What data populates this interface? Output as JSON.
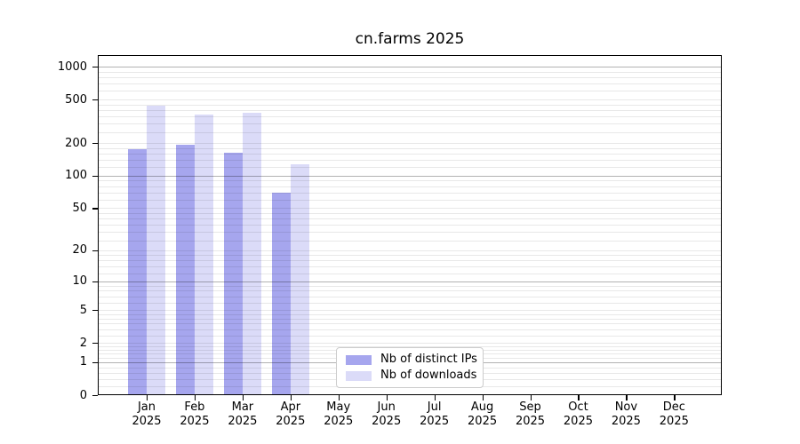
{
  "chart_data": {
    "type": "bar",
    "title": "cn.farms 2025",
    "categories": [
      "Jan",
      "Feb",
      "Mar",
      "Apr",
      "May",
      "Jun",
      "Jul",
      "Aug",
      "Sep",
      "Oct",
      "Nov",
      "Dec"
    ],
    "x_tick_year": "2025",
    "series": [
      {
        "name": "Nb of distinct IPs",
        "color": "#a6a6ee",
        "values": [
          176,
          192,
          163,
          69,
          0,
          0,
          0,
          0,
          0,
          0,
          0,
          0
        ]
      },
      {
        "name": "Nb of downloads",
        "color": "#dbdbf8",
        "values": [
          440,
          365,
          375,
          128,
          0,
          0,
          0,
          0,
          0,
          0,
          0,
          0
        ]
      }
    ],
    "y_axis": {
      "scale": "log10(value+1)",
      "tick_values": [
        0,
        1,
        2,
        5,
        10,
        20,
        50,
        100,
        200,
        500,
        1000
      ],
      "tick_labels": [
        "0",
        "1",
        "2",
        "5",
        "10",
        "20",
        "50",
        "100",
        "200",
        "500",
        "1000"
      ],
      "decade_values": [
        1,
        10,
        100,
        1000
      ],
      "minor_values": [
        0.2,
        0.4,
        0.6,
        0.8,
        1.2,
        1.4,
        1.6,
        1.8,
        2.5,
        3,
        3.5,
        4,
        4.5,
        6,
        7,
        8,
        9,
        12,
        14,
        16,
        18,
        25,
        30,
        35,
        40,
        45,
        60,
        70,
        80,
        90,
        120,
        140,
        160,
        180,
        250,
        300,
        350,
        400,
        450,
        600,
        700,
        800,
        900
      ],
      "ylim": [
        0,
        1276
      ]
    },
    "legend": {
      "entries": [
        "Nb of distinct IPs",
        "Nb of downloads"
      ],
      "position": "lower-center"
    },
    "grid": "on"
  },
  "style": {
    "background": "#ffffff",
    "major_grid_color": "rgba(0,0,0,0.30)",
    "minor_grid_color": "rgba(0,0,0,0.09)",
    "frame_color": "#000000",
    "text_color": "#000000",
    "legend_border_color": "#cccccc",
    "bar_color_distinct_ips": "#a6a6ee",
    "bar_color_downloads": "#dbdbf8"
  }
}
